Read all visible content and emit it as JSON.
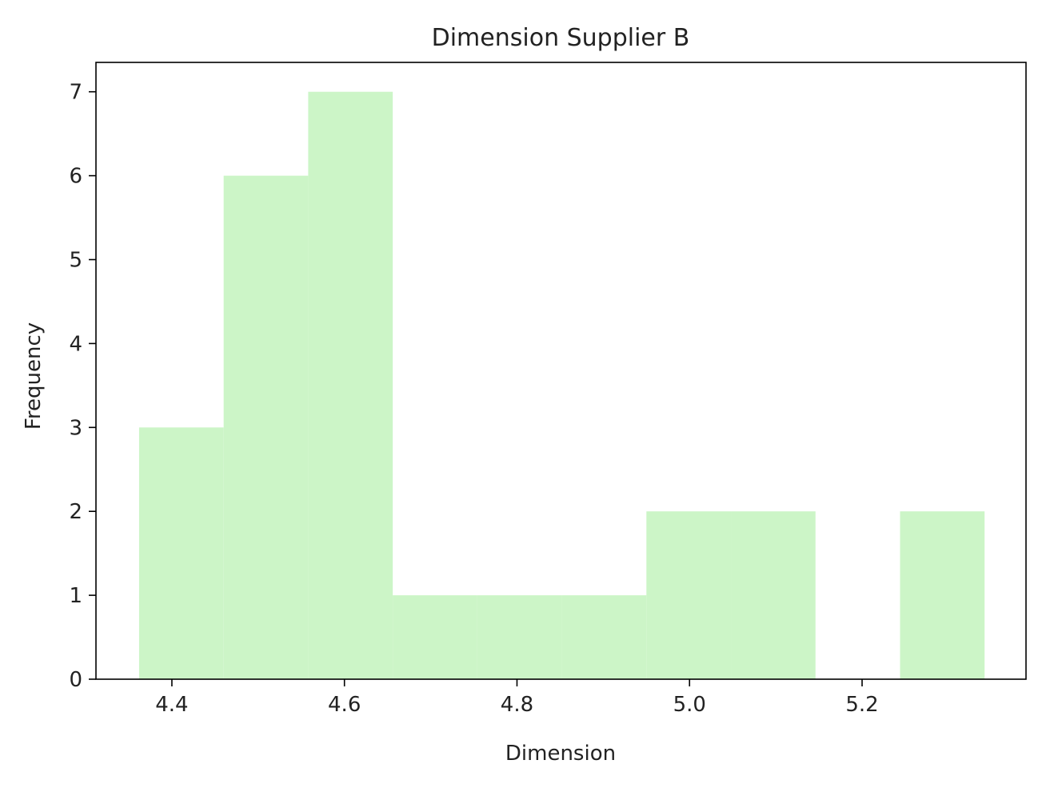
{
  "chart_data": {
    "type": "bar",
    "title": "Dimension Supplier B",
    "xlabel": "Dimension",
    "ylabel": "Frequency",
    "bar_color": "#ccf5c7",
    "xlim": [
      4.312,
      5.39
    ],
    "ylim": [
      0,
      7.35
    ],
    "xticks": [
      "4.4",
      "4.6",
      "4.8",
      "5.0",
      "5.2"
    ],
    "yticks": [
      "0",
      "1",
      "2",
      "3",
      "4",
      "5",
      "6",
      "7"
    ],
    "bins": [
      {
        "x0": 4.362,
        "x1": 4.46,
        "count": 3
      },
      {
        "x0": 4.46,
        "x1": 4.558,
        "count": 6
      },
      {
        "x0": 4.558,
        "x1": 4.656,
        "count": 7
      },
      {
        "x0": 4.656,
        "x1": 4.754,
        "count": 1
      },
      {
        "x0": 4.754,
        "x1": 4.852,
        "count": 1
      },
      {
        "x0": 4.852,
        "x1": 4.95,
        "count": 1
      },
      {
        "x0": 4.95,
        "x1": 5.048,
        "count": 2
      },
      {
        "x0": 5.048,
        "x1": 5.146,
        "count": 2
      },
      {
        "x0": 5.146,
        "x1": 5.244,
        "count": 0
      },
      {
        "x0": 5.244,
        "x1": 5.342,
        "count": 2
      }
    ]
  }
}
